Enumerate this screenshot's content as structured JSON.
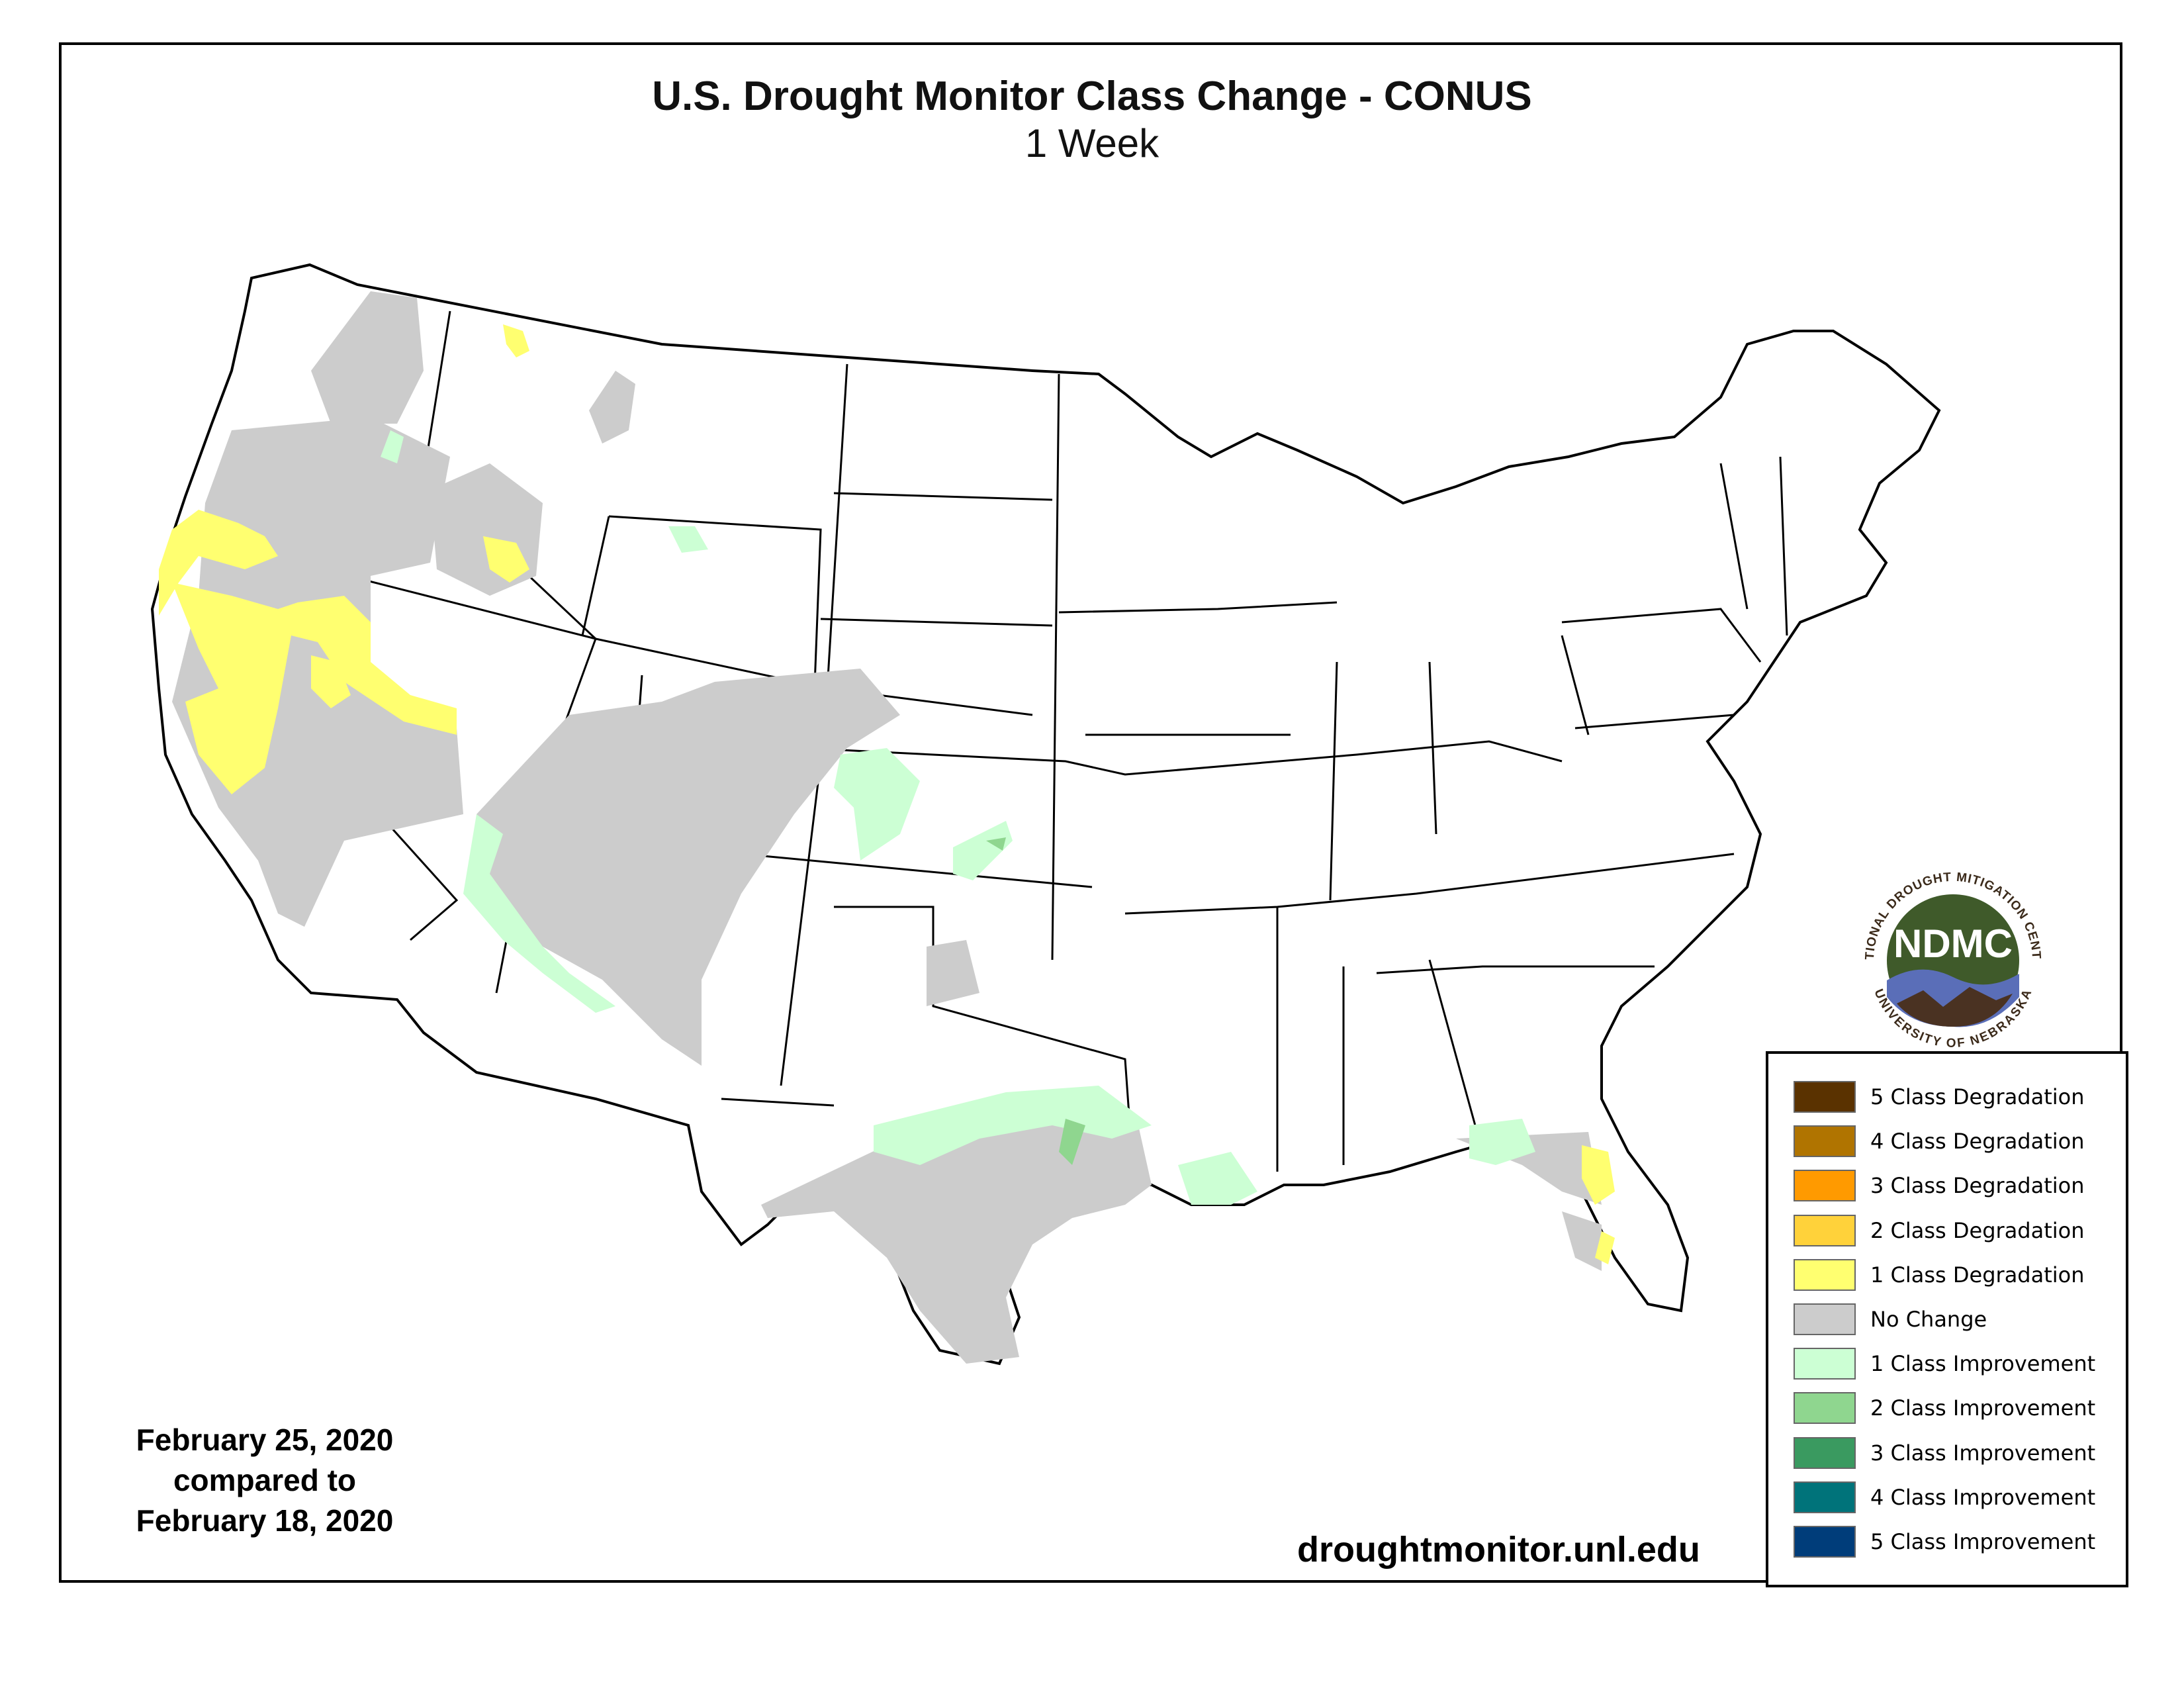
{
  "title": "U.S. Drought Monitor Class Change - CONUS",
  "subtitle": "1 Week",
  "dates": {
    "line1": "February 25, 2020",
    "line2": "compared to",
    "line3": "February 18, 2020"
  },
  "url": "droughtmonitor.unl.edu",
  "logo": {
    "ring_text_top": "NATIONAL DROUGHT MITIGATION CENTER",
    "ring_text_bottom": "UNIVERSITY OF NEBRASKA",
    "abbr": "NDMC"
  },
  "legend": [
    {
      "label": "5 Class Degradation",
      "color": "#5a3200"
    },
    {
      "label": "4 Class Degradation",
      "color": "#b07400"
    },
    {
      "label": "3 Class Degradation",
      "color": "#ff9a00"
    },
    {
      "label": "2 Class Degradation",
      "color": "#ffd23a"
    },
    {
      "label": "1 Class Degradation",
      "color": "#ffff70"
    },
    {
      "label": "No Change",
      "color": "#cccccc"
    },
    {
      "label": "1 Class Improvement",
      "color": "#ccffd4"
    },
    {
      "label": "2 Class Improvement",
      "color": "#8fd68f"
    },
    {
      "label": "3 Class Improvement",
      "color": "#3a9a60"
    },
    {
      "label": "4 Class Improvement",
      "color": "#00737a"
    },
    {
      "label": "5 Class Improvement",
      "color": "#003d7a"
    }
  ]
}
